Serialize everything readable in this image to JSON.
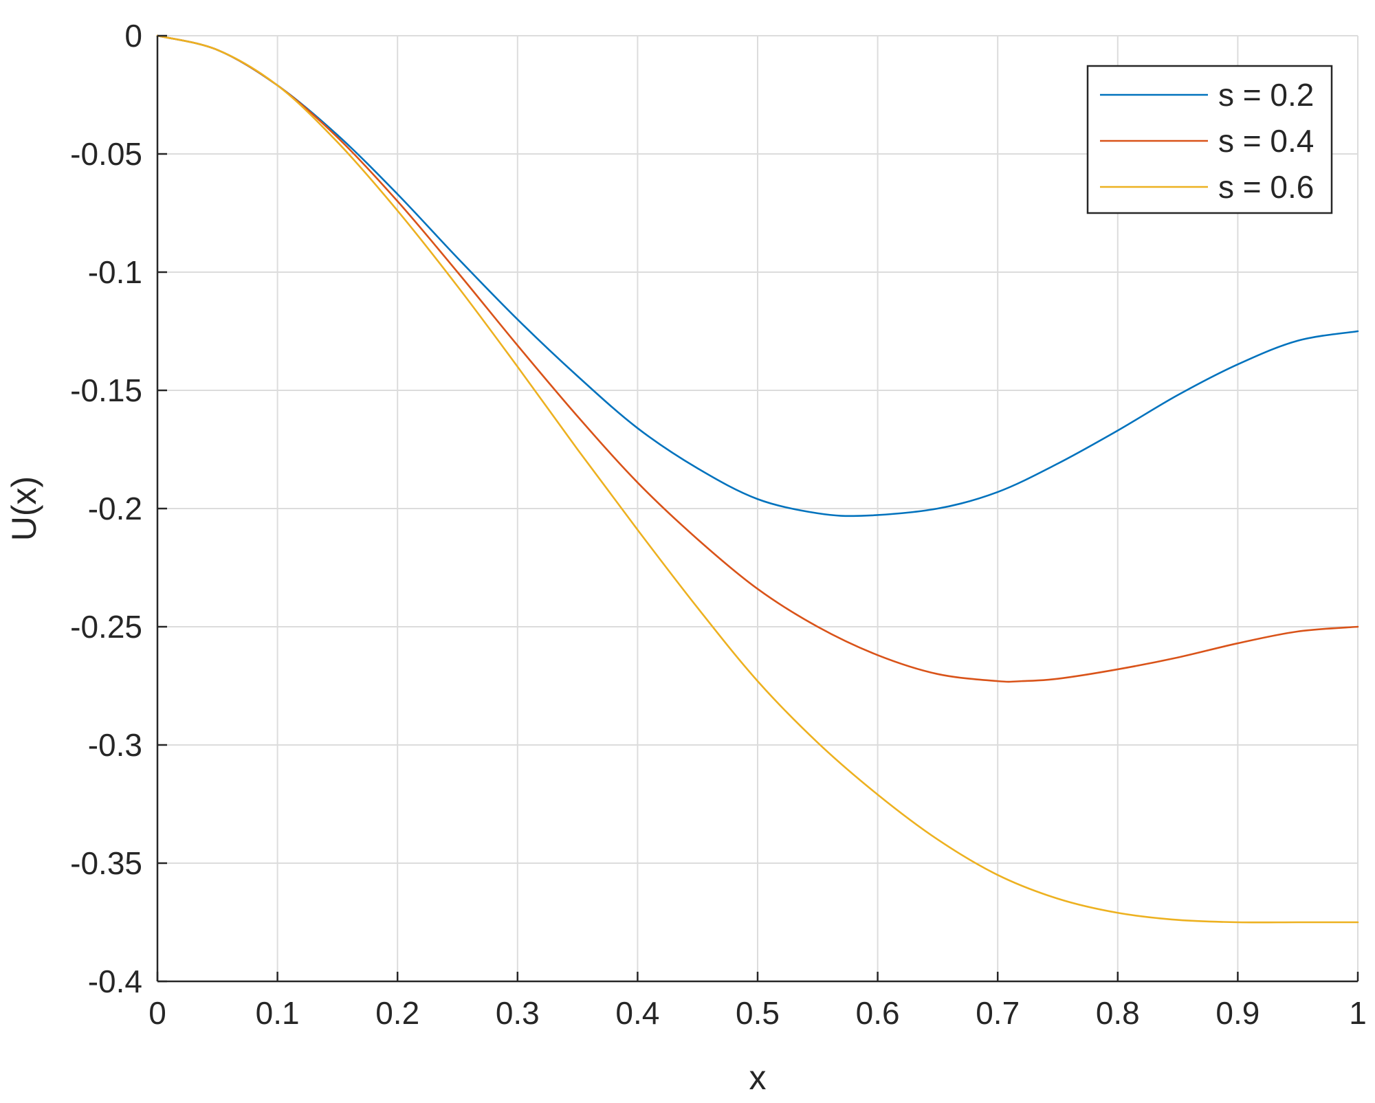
{
  "chart_data": {
    "type": "line",
    "title": "",
    "xlabel": "x",
    "ylabel": "U(x)",
    "xlim": [
      0,
      1
    ],
    "ylim": [
      -0.4,
      0
    ],
    "grid": true,
    "legend_position": "top-right",
    "x_ticks": [
      "0",
      "0.1",
      "0.2",
      "0.3",
      "0.4",
      "0.5",
      "0.6",
      "0.7",
      "0.8",
      "0.9",
      "1"
    ],
    "y_ticks": [
      "0",
      "-0.05",
      "-0.1",
      "-0.15",
      "-0.2",
      "-0.25",
      "-0.3",
      "-0.35",
      "-0.4"
    ],
    "series": [
      {
        "name": "s = 0.2",
        "color": "#0072BD",
        "x": [
          0,
          0.05,
          0.1,
          0.15,
          0.2,
          0.25,
          0.3,
          0.35,
          0.4,
          0.45,
          0.5,
          0.55,
          0.59,
          0.65,
          0.7,
          0.75,
          0.8,
          0.85,
          0.9,
          0.95,
          1.0
        ],
        "y": [
          0,
          -0.006,
          -0.021,
          -0.042,
          -0.067,
          -0.094,
          -0.12,
          -0.144,
          -0.166,
          -0.183,
          -0.196,
          -0.202,
          -0.203,
          -0.2,
          -0.193,
          -0.181,
          -0.167,
          -0.152,
          -0.139,
          -0.129,
          -0.125
        ]
      },
      {
        "name": "s = 0.4",
        "color": "#D95319",
        "x": [
          0,
          0.05,
          0.1,
          0.15,
          0.2,
          0.25,
          0.3,
          0.35,
          0.4,
          0.45,
          0.5,
          0.55,
          0.6,
          0.65,
          0.7,
          0.72,
          0.75,
          0.8,
          0.85,
          0.9,
          0.95,
          1.0
        ],
        "y": [
          0,
          -0.006,
          -0.021,
          -0.043,
          -0.07,
          -0.1,
          -0.131,
          -0.161,
          -0.189,
          -0.213,
          -0.234,
          -0.25,
          -0.262,
          -0.27,
          -0.273,
          -0.273,
          -0.272,
          -0.268,
          -0.263,
          -0.257,
          -0.252,
          -0.25
        ]
      },
      {
        "name": "s = 0.6",
        "color": "#EDB120",
        "x": [
          0,
          0.05,
          0.1,
          0.15,
          0.2,
          0.25,
          0.3,
          0.35,
          0.4,
          0.45,
          0.5,
          0.55,
          0.6,
          0.65,
          0.7,
          0.75,
          0.8,
          0.85,
          0.9,
          0.95,
          1.0
        ],
        "y": [
          0,
          -0.006,
          -0.021,
          -0.045,
          -0.074,
          -0.106,
          -0.14,
          -0.175,
          -0.209,
          -0.242,
          -0.273,
          -0.299,
          -0.321,
          -0.34,
          -0.355,
          -0.365,
          -0.371,
          -0.374,
          -0.375,
          -0.375,
          -0.375
        ]
      }
    ]
  }
}
